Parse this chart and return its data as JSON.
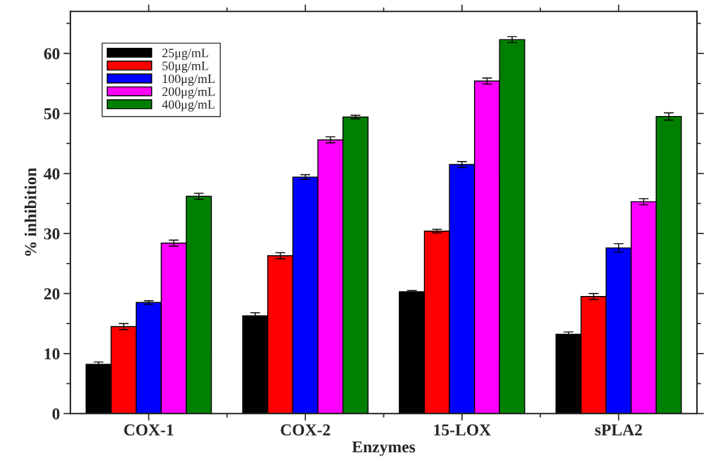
{
  "chart_data": {
    "type": "bar",
    "xlabel": "Enzymes",
    "ylabel": "% inhibition",
    "categories": [
      "COX-1",
      "COX-2",
      "15-LOX",
      "sPLA2"
    ],
    "series": [
      {
        "name": "25μg/mL",
        "color": "#000000",
        "values": [
          8.2,
          16.3,
          20.3,
          13.2
        ],
        "errors": [
          0.4,
          0.5,
          0.2,
          0.4
        ]
      },
      {
        "name": "50μg/mL",
        "color": "#ff0000",
        "values": [
          14.5,
          26.3,
          30.4,
          19.5
        ],
        "errors": [
          0.5,
          0.5,
          0.3,
          0.5
        ]
      },
      {
        "name": "100μg/mL",
        "color": "#0000ff",
        "values": [
          18.5,
          39.4,
          41.5,
          27.6
        ],
        "errors": [
          0.3,
          0.4,
          0.5,
          0.7
        ]
      },
      {
        "name": "200μg/mL",
        "color": "#ff00ff",
        "values": [
          28.4,
          45.6,
          55.4,
          35.3
        ],
        "errors": [
          0.5,
          0.5,
          0.5,
          0.5
        ]
      },
      {
        "name": "400μg/mL",
        "color": "#008000",
        "values": [
          36.2,
          49.4,
          62.3,
          49.5
        ],
        "errors": [
          0.5,
          0.3,
          0.5,
          0.6
        ]
      }
    ],
    "ylim": [
      0,
      67
    ],
    "yticks": [
      0,
      10,
      20,
      30,
      40,
      50,
      60
    ],
    "legend": "top left",
    "grid": false
  }
}
